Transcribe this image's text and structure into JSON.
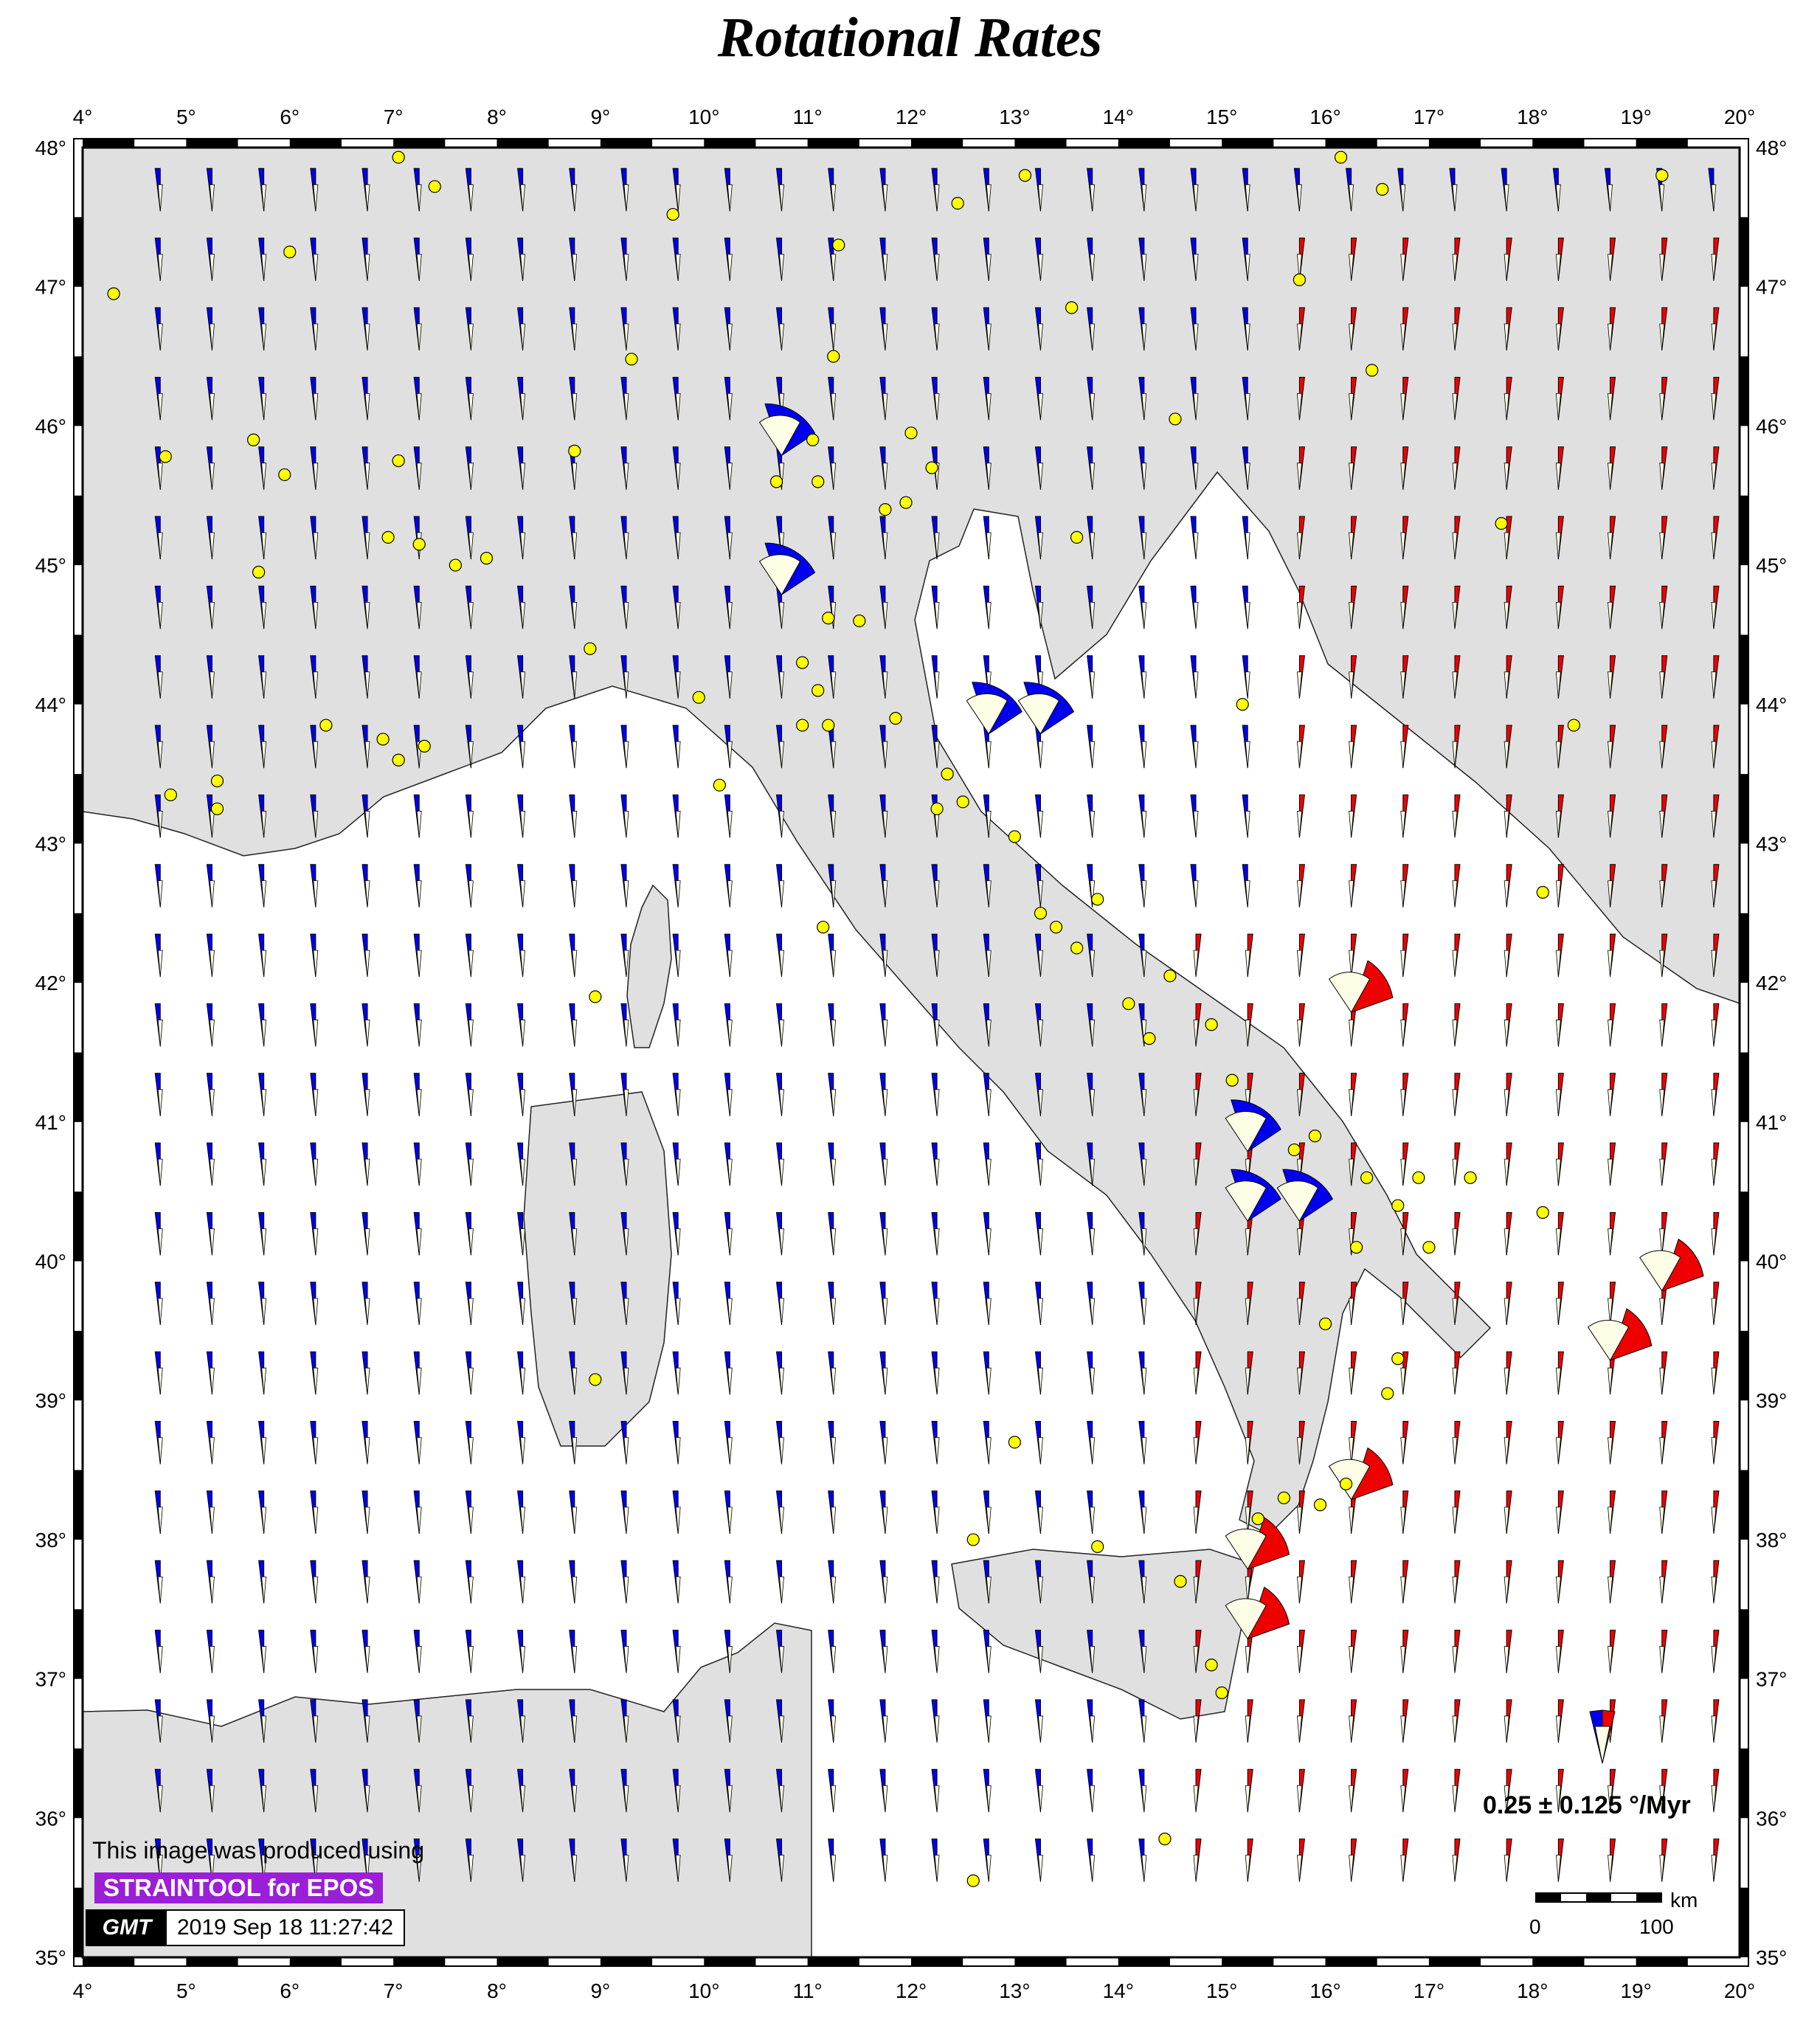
{
  "title": "Rotational Rates",
  "map": {
    "lon_range": [
      4,
      20
    ],
    "lat_range": [
      35,
      48
    ],
    "lon_ticks": [
      "4°",
      "5°",
      "6°",
      "7°",
      "8°",
      "9°",
      "10°",
      "11°",
      "12°",
      "13°",
      "14°",
      "15°",
      "16°",
      "17°",
      "18°",
      "19°",
      "20°"
    ],
    "lat_ticks": [
      "35°",
      "36°",
      "37°",
      "38°",
      "39°",
      "40°",
      "41°",
      "42°",
      "43°",
      "44°",
      "45°",
      "46°",
      "47°",
      "48°"
    ],
    "colors": {
      "land": "#e0e0e0",
      "sea": "#ffffff",
      "clockwise": "#0000ee",
      "counter_clockwise": "#ee0000",
      "uncertainty": "#fefde6",
      "station": "#ffff00"
    }
  },
  "legend": {
    "label": "0.25 ± 0.125 °/Myr",
    "wedge_icon": "rotation-wedge-icon"
  },
  "scalebar": {
    "unit": "km",
    "min": "0",
    "max": "100"
  },
  "credit": {
    "text": "This image was produced using",
    "tool": "STRAINTOOL for EPOS",
    "logo": "GMT",
    "timestamp": "2019 Sep 18 11:27:42"
  }
}
